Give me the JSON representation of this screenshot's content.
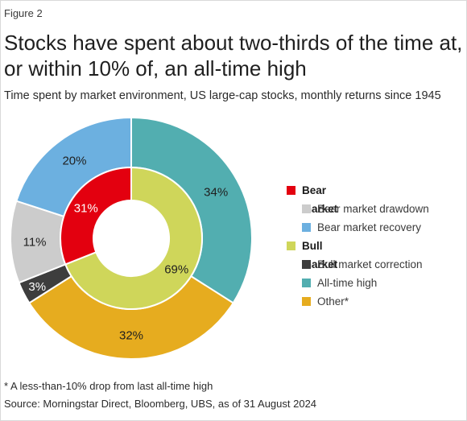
{
  "figure_label": "Figure 2",
  "title_line1": "Stocks have spent about two-thirds of the time at,",
  "title_line2": "or within 10% of, an all-time high",
  "subtitle": "Time spent by market environment, US large-cap stocks, monthly returns since 1945",
  "footnote": "* A less-than-10% drop from last all-time high",
  "source": "Source: Morningstar Direct, Bloomberg, UBS, as of 31 August 2024",
  "legend": [
    {
      "kind": "group",
      "label": "Bear market",
      "color": "#e3000f"
    },
    {
      "kind": "item",
      "label": "Bear market drawdown",
      "color": "#cccccc"
    },
    {
      "kind": "item",
      "label": "Bear market recovery",
      "color": "#6cb0e0"
    },
    {
      "kind": "group",
      "label": "Bull market",
      "color": "#cfd65a"
    },
    {
      "kind": "item",
      "label": "Bull market correction",
      "color": "#3d3d3d"
    },
    {
      "kind": "item",
      "label": "All-time high",
      "color": "#52aeb0"
    },
    {
      "kind": "item",
      "label": "Other*",
      "color": "#e6ac1f"
    }
  ],
  "chart_data": {
    "type": "pie",
    "subtype": "nested-donut",
    "inner_ring": [
      {
        "name": "Bull market",
        "value": 69,
        "label": "69%",
        "color": "#cfd65a"
      },
      {
        "name": "Bear market",
        "value": 31,
        "label": "31%",
        "color": "#e3000f"
      }
    ],
    "outer_ring": [
      {
        "name": "All-time high",
        "value": 34,
        "label": "34%",
        "color": "#52aeb0"
      },
      {
        "name": "Other*",
        "value": 32,
        "label": "32%",
        "color": "#e6ac1f"
      },
      {
        "name": "Bull market correction",
        "value": 3,
        "label": "3%",
        "color": "#3d3d3d"
      },
      {
        "name": "Bear market drawdown",
        "value": 11,
        "label": "11%",
        "color": "#cccccc"
      },
      {
        "name": "Bear market recovery",
        "value": 20,
        "label": "20%",
        "color": "#6cb0e0"
      }
    ]
  }
}
